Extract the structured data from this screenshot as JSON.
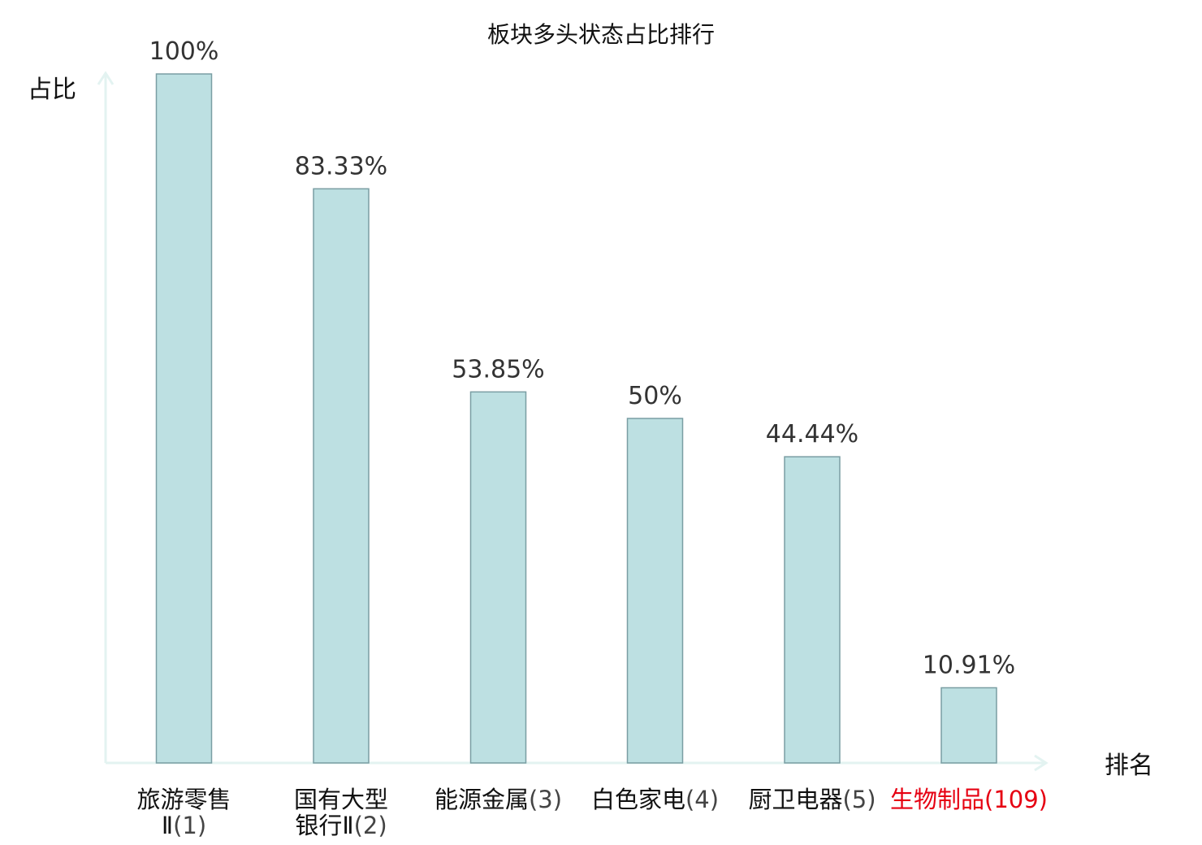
{
  "chart_data": {
    "type": "bar",
    "title": "板块多头状态占比排行",
    "ylabel": "占比",
    "xlabel": "排名",
    "ylim": [
      0,
      100
    ],
    "grid": false,
    "categories": [
      {
        "name": "旅游零售Ⅱ",
        "rank": "(1)",
        "lines": [
          "旅游零售",
          "Ⅱ(1)"
        ],
        "highlight": false
      },
      {
        "name": "国有大型银行Ⅱ",
        "rank": "(2)",
        "lines": [
          "国有大型",
          "银行Ⅱ(2)"
        ],
        "highlight": false
      },
      {
        "name": "能源金属",
        "rank": "(3)",
        "lines": [
          "能源金属(3)"
        ],
        "highlight": false
      },
      {
        "name": "白色家电",
        "rank": "(4)",
        "lines": [
          "白色家电(4)"
        ],
        "highlight": false
      },
      {
        "name": "厨卫电器",
        "rank": "(5)",
        "lines": [
          "厨卫电器(5)"
        ],
        "highlight": false
      },
      {
        "name": "生物制品",
        "rank": "(109)",
        "lines": [
          "生物制品(109)"
        ],
        "highlight": true
      }
    ],
    "values": [
      100,
      83.33,
      53.85,
      50,
      44.44,
      10.91
    ],
    "data_labels": [
      "100%",
      "83.33%",
      "53.85%",
      "50%",
      "44.44%",
      "10.91%"
    ],
    "colors": {
      "bar_fill": "#bde0e2",
      "bar_stroke": "#7a9ea3",
      "axis": "#e3f3f1",
      "highlight": "#e60012",
      "text": "#111111"
    }
  }
}
